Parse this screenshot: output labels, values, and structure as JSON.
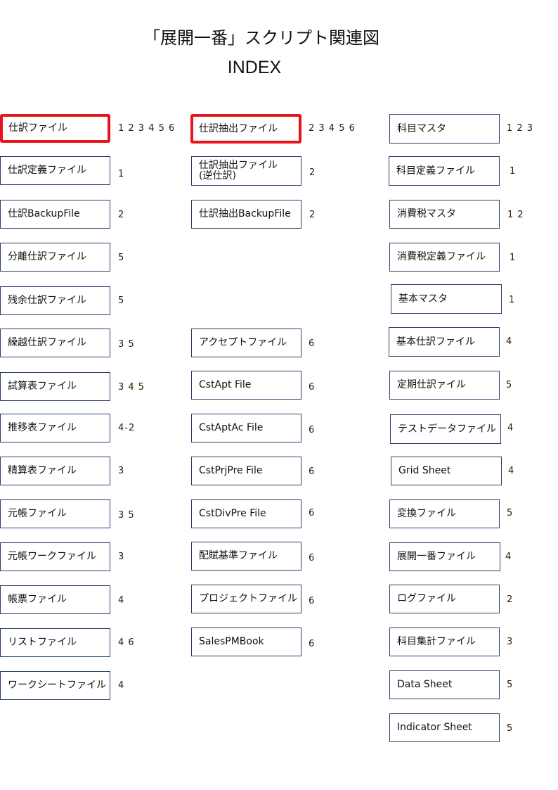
{
  "header": {
    "title": "「展開一番」スクリプト関連図",
    "subtitle": "INDEX"
  },
  "colors": {
    "box_border": "#2b3f6b",
    "highlight_border": "#e8141b",
    "reference_text": "#2a1a00"
  },
  "columns": {
    "left": [
      {
        "label": "仕訳ファイル",
        "refs": "1 2 3 4 5 6",
        "highlighted": true
      },
      {
        "label": "仕訳定義ファイル",
        "refs": "1"
      },
      {
        "label": "仕訳BackupFile",
        "refs": "2"
      },
      {
        "label": "分離仕訳ファイル",
        "refs": "5"
      },
      {
        "label": "残余仕訳ファイル",
        "refs": "5"
      },
      {
        "label": "繰越仕訳ファイル",
        "refs": "3 5"
      },
      {
        "label": "試算表ファイル",
        "refs": "3 4 5"
      },
      {
        "label": "推移表ファイル",
        "refs": "4-2"
      },
      {
        "label": "精算表ファイル",
        "refs": "3"
      },
      {
        "label": "元帳ファイル",
        "refs": "3 5"
      },
      {
        "label": "元帳ワークファイル",
        "refs": "3"
      },
      {
        "label": "帳票ファイル",
        "refs": "4"
      },
      {
        "label": "リストファイル",
        "refs": "4 6"
      },
      {
        "label": "ワークシートファイル",
        "refs": "4"
      }
    ],
    "middle": [
      {
        "label": "仕訳抽出ファイル",
        "refs": "2 3 4 5 6",
        "highlighted": true
      },
      {
        "label": "仕訳抽出ファイル\n(逆仕訳)",
        "refs": "2"
      },
      {
        "label": "仕訳抽出BackupFile",
        "refs": "2"
      },
      {
        "label": "アクセプトファイル",
        "refs": "6"
      },
      {
        "label": "CstApt File",
        "refs": "6"
      },
      {
        "label": "CstAptAc File",
        "refs": "6"
      },
      {
        "label": "CstPrjPre File",
        "refs": "6"
      },
      {
        "label": "CstDivPre File",
        "refs": "6"
      },
      {
        "label": "配賦基準ファイル",
        "refs": "6"
      },
      {
        "label": "プロジェクトファイル",
        "refs": "6"
      },
      {
        "label": "SalesPMBook",
        "refs": "6"
      }
    ],
    "right": [
      {
        "label": "科目マスタ",
        "refs": "1 2 3"
      },
      {
        "label": "科目定義ファイル",
        "refs": "1"
      },
      {
        "label": "消費税マスタ",
        "refs": "1 2"
      },
      {
        "label": "消費税定義ファイル",
        "refs": "1"
      },
      {
        "label": "基本マスタ",
        "refs": "1"
      },
      {
        "label": "基本仕訳ファイル",
        "refs": "4"
      },
      {
        "label": "定期仕訳ァイル",
        "refs": "5"
      },
      {
        "label": "テストデータファイル",
        "refs": "4"
      },
      {
        "label": "Grid Sheet",
        "refs": "4"
      },
      {
        "label": "変換ファイル",
        "refs": "5"
      },
      {
        "label": "展開一番ファイル",
        "refs": "4"
      },
      {
        "label": "ログファイル",
        "refs": "2"
      },
      {
        "label": "科目集計ファイル",
        "refs": "3"
      },
      {
        "label": "Data Sheet",
        "refs": "5"
      },
      {
        "label": "Indicator Sheet",
        "refs": "5"
      }
    ]
  }
}
